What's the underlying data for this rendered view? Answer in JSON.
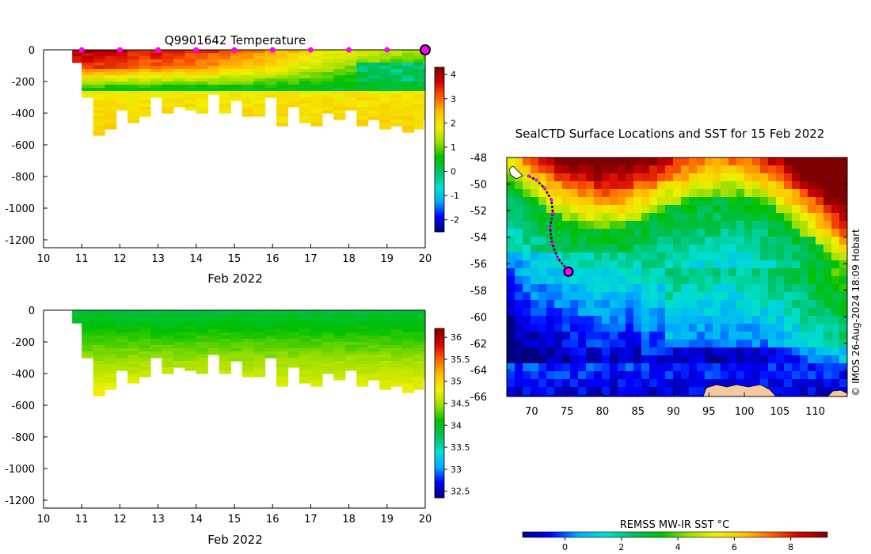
{
  "panels": {
    "temperature": {
      "type": "heatmap",
      "title": "Q9901642  Temperature",
      "xlabel": "Feb 2022",
      "xticks": [
        "10",
        "11",
        "12",
        "13",
        "14",
        "15",
        "16",
        "17",
        "18",
        "19",
        "20"
      ],
      "yticks": [
        "0",
        "-200",
        "-400",
        "-600",
        "-800",
        "-1000",
        "-1200"
      ],
      "ytick_values": [
        0,
        -200,
        -400,
        -600,
        -800,
        -1000,
        -1200
      ],
      "xlim": [
        10,
        20
      ],
      "ylim": [
        -1250,
        0
      ],
      "colorbar_ticks": [
        "4",
        "3",
        "2",
        "1",
        "0",
        "-1",
        "-2"
      ],
      "colorbar_values": [
        4,
        3,
        2,
        1,
        0,
        -1,
        -2
      ],
      "colorbar_range": [
        -2.5,
        4.3
      ],
      "surface_markers_days": [
        11,
        12,
        13,
        14,
        15,
        16,
        17,
        18,
        19
      ],
      "current_marker_day": 20,
      "profiles": {
        "days": [
          10.75,
          11.0,
          11.3,
          11.6,
          11.9,
          12.2,
          12.5,
          12.8,
          13.1,
          13.4,
          13.7,
          14.0,
          14.3,
          14.6,
          14.9,
          15.2,
          15.5,
          15.8,
          16.1,
          16.4,
          16.7,
          17.0,
          17.3,
          17.6,
          17.9,
          18.2,
          18.5,
          18.8,
          19.1,
          19.4,
          19.7,
          19.95
        ],
        "max_depth": [
          80,
          300,
          540,
          500,
          380,
          450,
          420,
          300,
          400,
          350,
          380,
          390,
          280,
          390,
          320,
          410,
          420,
          300,
          480,
          350,
          450,
          480,
          400,
          440,
          380,
          470,
          440,
          500,
          470,
          510,
          490,
          440
        ],
        "surface_temp": [
          3.9,
          3.9,
          3.9,
          3.8,
          3.7,
          3.6,
          3.5,
          3.6,
          3.5,
          3.4,
          3.4,
          3.3,
          3.3,
          3.1,
          3.0,
          2.9,
          2.8,
          2.6,
          2.5,
          2.4,
          2.2,
          2.0,
          1.9,
          1.8,
          1.7,
          1.6,
          1.5,
          1.5,
          1.4,
          1.3,
          1.3,
          1.2
        ]
      }
    },
    "salinity": {
      "type": "heatmap",
      "title": "",
      "xlabel": "Feb 2022",
      "xticks": [
        "10",
        "11",
        "12",
        "13",
        "14",
        "15",
        "16",
        "17",
        "18",
        "19",
        "20"
      ],
      "yticks": [
        "0",
        "-200",
        "-400",
        "-600",
        "-800",
        "-1000",
        "-1200"
      ],
      "ytick_values": [
        0,
        -200,
        -400,
        -600,
        -800,
        -1000,
        -1200
      ],
      "xlim": [
        10,
        20
      ],
      "ylim": [
        -1250,
        0
      ],
      "colorbar_ticks": [
        "36",
        "35.5",
        "35",
        "34.5",
        "34",
        "33.5",
        "33",
        "32.5"
      ],
      "colorbar_values": [
        36,
        35.5,
        35,
        34.5,
        34,
        33.5,
        33,
        32.5
      ],
      "colorbar_range": [
        32.35,
        36.2
      ]
    },
    "map": {
      "type": "heatmap",
      "title": "SealCTD Surface Locations and SST for 15 Feb 2022",
      "lon_ticks": [
        "70",
        "75",
        "80",
        "85",
        "90",
        "95",
        "100",
        "105",
        "110"
      ],
      "lon_values": [
        70,
        75,
        80,
        85,
        90,
        95,
        100,
        105,
        110
      ],
      "lat_ticks": [
        "-48",
        "-50",
        "-52",
        "-54",
        "-56",
        "-58",
        "-60",
        "-62",
        "-64",
        "-66"
      ],
      "lat_values": [
        -48,
        -50,
        -52,
        -54,
        -56,
        -58,
        -60,
        -62,
        -64,
        -66
      ],
      "lon_range": [
        66.5,
        114.5
      ],
      "lat_range": [
        -66,
        -48
      ],
      "track": [
        {
          "lon": 69.6,
          "lat": -49.4
        },
        {
          "lon": 70.7,
          "lat": -49.7
        },
        {
          "lon": 71.8,
          "lat": -50.3
        },
        {
          "lon": 72.8,
          "lat": -51.2
        },
        {
          "lon": 73.0,
          "lat": -52.2
        },
        {
          "lon": 72.6,
          "lat": -53.3
        },
        {
          "lon": 72.9,
          "lat": -54.5
        },
        {
          "lon": 73.7,
          "lat": -55.6
        },
        {
          "lon": 74.8,
          "lat": -56.3
        },
        {
          "lon": 75.2,
          "lat": -56.6
        }
      ],
      "colorbar_title": "REMSS MW-IR SST °C",
      "colorbar_ticks": [
        "0",
        "2",
        "4",
        "6",
        "8"
      ],
      "colorbar_values": [
        0,
        2,
        4,
        6,
        8
      ],
      "colorbar_range": [
        -1.5,
        9.3
      ]
    }
  },
  "credit": "© IMOS 26-Aug-2024 18:09 Hobart",
  "colors": {
    "jet_stops": [
      "#00007f",
      "#0000ff",
      "#00aaff",
      "#00e0d0",
      "#00c060",
      "#00c000",
      "#9fdf00",
      "#f0f000",
      "#ffc000",
      "#ff6000",
      "#d00000",
      "#7f0000"
    ],
    "land": "#f5c9a0",
    "track": "#000000",
    "marker": "#ff00ff"
  }
}
